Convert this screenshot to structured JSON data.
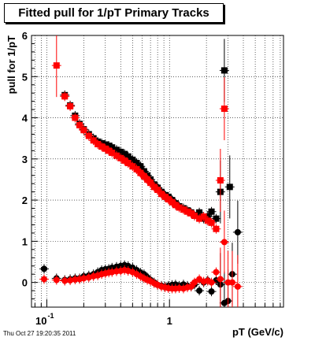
{
  "footer": {
    "timestamp": "Thu Oct 27 19:20:35 2011"
  },
  "chart_data": {
    "type": "scatter",
    "title": "Fitted pull for 1/pT  Primary Tracks",
    "xlabel": "pT (GeV/c)",
    "ylabel": "pull for 1/pT",
    "xscale": "log",
    "xlim": [
      0.075,
      8.5
    ],
    "ylim": [
      -0.6,
      6
    ],
    "grid": true,
    "x_tick_labels": [
      {
        "x": 0.1,
        "base": "10",
        "exp": "-1"
      },
      {
        "x": 1,
        "base": "1",
        "exp": ""
      }
    ],
    "y_ticks": [
      0,
      1,
      2,
      3,
      4,
      5,
      6
    ],
    "series": [
      {
        "marker": "square",
        "color": "#000000",
        "points": [
          [
            0.14,
            4.55
          ],
          [
            0.155,
            4.3
          ],
          [
            0.17,
            4.05
          ],
          [
            0.185,
            3.85
          ],
          [
            0.2,
            3.72
          ],
          [
            0.22,
            3.6
          ],
          [
            0.24,
            3.5
          ],
          [
            0.26,
            3.42
          ],
          [
            0.28,
            3.38
          ],
          [
            0.3,
            3.35
          ],
          [
            0.32,
            3.32
          ],
          [
            0.34,
            3.28
          ],
          [
            0.37,
            3.22
          ],
          [
            0.4,
            3.17
          ],
          [
            0.43,
            3.12
          ],
          [
            0.46,
            3.06
          ],
          [
            0.5,
            2.98
          ],
          [
            0.54,
            2.9
          ],
          [
            0.58,
            2.82
          ],
          [
            0.62,
            2.7
          ],
          [
            0.66,
            2.6
          ],
          [
            0.7,
            2.5
          ],
          [
            0.75,
            2.38
          ],
          [
            0.8,
            2.3
          ],
          [
            0.86,
            2.2
          ],
          [
            0.92,
            2.12
          ],
          [
            0.98,
            2.08
          ],
          [
            1.05,
            2.0
          ],
          [
            1.12,
            1.92
          ],
          [
            1.2,
            1.85
          ],
          [
            1.3,
            1.8
          ],
          [
            1.4,
            1.75
          ],
          [
            1.5,
            1.7
          ],
          [
            1.6,
            1.62
          ],
          [
            1.75,
            1.7
          ],
          [
            1.9,
            1.55
          ],
          [
            2.05,
            1.6
          ],
          [
            2.2,
            1.72
          ],
          [
            2.4,
            1.55
          ],
          [
            2.6,
            2.2
          ],
          [
            2.8,
            5.15
          ],
          [
            3.1,
            2.32
          ]
        ]
      },
      {
        "marker": "square",
        "color": "#ff0000",
        "points": [
          [
            0.12,
            5.27
          ],
          [
            0.14,
            4.52
          ],
          [
            0.155,
            4.28
          ],
          [
            0.17,
            4.0
          ],
          [
            0.185,
            3.82
          ],
          [
            0.2,
            3.7
          ],
          [
            0.22,
            3.56
          ],
          [
            0.24,
            3.45
          ],
          [
            0.26,
            3.36
          ],
          [
            0.28,
            3.3
          ],
          [
            0.3,
            3.25
          ],
          [
            0.32,
            3.2
          ],
          [
            0.34,
            3.15
          ],
          [
            0.37,
            3.08
          ],
          [
            0.4,
            3.02
          ],
          [
            0.43,
            2.96
          ],
          [
            0.46,
            2.9
          ],
          [
            0.5,
            2.82
          ],
          [
            0.54,
            2.75
          ],
          [
            0.58,
            2.66
          ],
          [
            0.62,
            2.58
          ],
          [
            0.66,
            2.5
          ],
          [
            0.7,
            2.42
          ],
          [
            0.75,
            2.32
          ],
          [
            0.8,
            2.25
          ],
          [
            0.86,
            2.15
          ],
          [
            0.92,
            2.08
          ],
          [
            0.98,
            2.02
          ],
          [
            1.05,
            1.95
          ],
          [
            1.12,
            1.88
          ],
          [
            1.2,
            1.82
          ],
          [
            1.3,
            1.77
          ],
          [
            1.4,
            1.72
          ],
          [
            1.5,
            1.68
          ],
          [
            1.6,
            1.62
          ],
          [
            1.75,
            1.55
          ],
          [
            1.9,
            1.6
          ],
          [
            2.05,
            1.5
          ],
          [
            2.2,
            1.45
          ],
          [
            2.4,
            1.3
          ],
          [
            2.6,
            2.48
          ],
          [
            2.8,
            4.22
          ]
        ]
      },
      {
        "marker": "circle",
        "color": "#000000",
        "points": [
          [
            0.095,
            0.33
          ],
          [
            0.12,
            0.1
          ],
          [
            0.14,
            0.06
          ],
          [
            0.155,
            0.08
          ],
          [
            0.17,
            0.1
          ],
          [
            0.185,
            0.1
          ],
          [
            0.2,
            0.15
          ],
          [
            0.22,
            0.17
          ],
          [
            0.24,
            0.2
          ],
          [
            0.26,
            0.25
          ],
          [
            0.28,
            0.3
          ],
          [
            0.3,
            0.32
          ],
          [
            0.32,
            0.33
          ],
          [
            0.34,
            0.36
          ],
          [
            0.37,
            0.38
          ],
          [
            0.4,
            0.4
          ],
          [
            0.43,
            0.42
          ],
          [
            0.46,
            0.4
          ],
          [
            0.5,
            0.36
          ],
          [
            0.54,
            0.3
          ],
          [
            0.58,
            0.24
          ],
          [
            0.62,
            0.2
          ],
          [
            0.66,
            0.12
          ],
          [
            0.7,
            0.06
          ],
          [
            0.75,
            0.0
          ],
          [
            0.8,
            -0.06
          ],
          [
            0.86,
            -0.08
          ],
          [
            0.92,
            -0.1
          ],
          [
            0.98,
            -0.08
          ],
          [
            1.05,
            -0.06
          ],
          [
            1.12,
            -0.05
          ],
          [
            1.2,
            -0.08
          ],
          [
            1.3,
            -0.05
          ],
          [
            1.4,
            -0.08
          ],
          [
            1.5,
            -0.1
          ],
          [
            1.6,
            -0.05
          ],
          [
            1.75,
            -0.2
          ],
          [
            1.9,
            0.0
          ],
          [
            2.05,
            0.05
          ],
          [
            2.2,
            -0.22
          ],
          [
            2.4,
            0.05
          ],
          [
            2.6,
            -0.05
          ],
          [
            2.8,
            -0.5
          ],
          [
            3.0,
            -0.45
          ],
          [
            3.25,
            0.2
          ],
          [
            3.6,
            1.22
          ]
        ]
      },
      {
        "marker": "circle",
        "color": "#ff0000",
        "points": [
          [
            0.095,
            0.08
          ],
          [
            0.12,
            0.06
          ],
          [
            0.14,
            0.04
          ],
          [
            0.155,
            0.05
          ],
          [
            0.17,
            0.07
          ],
          [
            0.185,
            0.08
          ],
          [
            0.2,
            0.1
          ],
          [
            0.22,
            0.12
          ],
          [
            0.24,
            0.15
          ],
          [
            0.26,
            0.17
          ],
          [
            0.28,
            0.2
          ],
          [
            0.3,
            0.22
          ],
          [
            0.32,
            0.24
          ],
          [
            0.34,
            0.25
          ],
          [
            0.37,
            0.27
          ],
          [
            0.4,
            0.28
          ],
          [
            0.43,
            0.3
          ],
          [
            0.46,
            0.28
          ],
          [
            0.5,
            0.25
          ],
          [
            0.54,
            0.2
          ],
          [
            0.58,
            0.15
          ],
          [
            0.62,
            0.1
          ],
          [
            0.66,
            0.06
          ],
          [
            0.7,
            0.03
          ],
          [
            0.75,
            -0.02
          ],
          [
            0.8,
            -0.06
          ],
          [
            0.86,
            -0.1
          ],
          [
            0.92,
            -0.12
          ],
          [
            0.98,
            -0.14
          ],
          [
            1.05,
            -0.15
          ],
          [
            1.12,
            -0.15
          ],
          [
            1.2,
            -0.14
          ],
          [
            1.3,
            -0.15
          ],
          [
            1.4,
            -0.12
          ],
          [
            1.5,
            -0.1
          ],
          [
            1.6,
            0.0
          ],
          [
            1.75,
            0.08
          ],
          [
            1.9,
            0.02
          ],
          [
            2.05,
            0.04
          ],
          [
            2.2,
            0.0
          ],
          [
            2.4,
            0.25
          ],
          [
            2.6,
            0.08
          ],
          [
            2.8,
            0.98
          ],
          [
            3.0,
            0.0
          ],
          [
            3.25,
            0.0
          ],
          [
            3.6,
            -0.1
          ]
        ]
      }
    ]
  }
}
